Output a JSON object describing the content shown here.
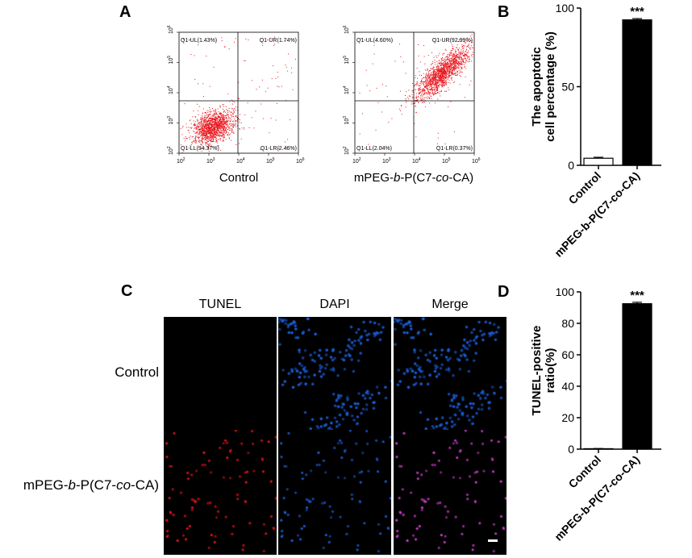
{
  "panel_letters": {
    "a": "A",
    "b": "B",
    "c": "C",
    "d": "D"
  },
  "flow_cytometry": {
    "axis_ticks": [
      "10",
      "2",
      "3",
      "4",
      "5",
      "6"
    ],
    "plots": [
      {
        "caption": "Control",
        "quadrants": {
          "ul": "Q1-UL(1.43%)",
          "ur": "Q1-UR(1.74%)",
          "ll": "Q1-LL(94.37%)",
          "lr": "Q1-LR(2.46%)"
        },
        "colors": {
          "dots": "#e8141c"
        }
      },
      {
        "caption_parts": [
          "mPEG-",
          "b",
          "-P(C7-",
          "co",
          "-CA)"
        ],
        "quadrants": {
          "ul": "Q1-UL(4.60%)",
          "ur": "Q1-UR(92.99%)",
          "ll": "Q1-LL(2.04%)",
          "lr": "Q1-LR(0.37%)"
        }
      }
    ]
  },
  "chart_data": [
    {
      "type": "bar",
      "categories": [
        "Control",
        "mPEG-b-P(C7-co-CA)"
      ],
      "values": [
        4.5,
        92.5
      ],
      "errors": [
        0.6,
        0.8
      ],
      "ylabel": "The apoptotic cell percentage (%)",
      "ylabel_lines": [
        "The apoptotic",
        "cell percentage (%)"
      ],
      "ylim": [
        0,
        100
      ],
      "yticks": [
        "0",
        "50",
        "100"
      ],
      "significance": "***",
      "colors": [
        "#ffffff",
        "#000000"
      ]
    },
    {
      "type": "bar",
      "categories": [
        "Control",
        "mPEG-b-P(C7-co-CA)"
      ],
      "values": [
        0.3,
        92.5
      ],
      "errors": [
        0.1,
        0.9
      ],
      "ylabel": "TUNEL-positive ratio(%)",
      "ylabel_lines": [
        "TUNEL-positive",
        "ratio(%)"
      ],
      "ylim": [
        0,
        100
      ],
      "yticks": [
        "0",
        "20",
        "40",
        "60",
        "80",
        "100"
      ],
      "significance": "***",
      "colors": [
        "#ffffff",
        "#000000"
      ]
    }
  ],
  "microscopy": {
    "column_headers": [
      "TUNEL",
      "DAPI",
      "Merge"
    ],
    "row_labels": [
      "Control"
    ],
    "row2_label_parts": [
      "mPEG-",
      "b",
      "-P(C7-",
      "co",
      "-CA)"
    ],
    "colors": {
      "tunel": "#e8141c",
      "dapi": "#1a5fd8",
      "merge": "#d040d0"
    }
  }
}
